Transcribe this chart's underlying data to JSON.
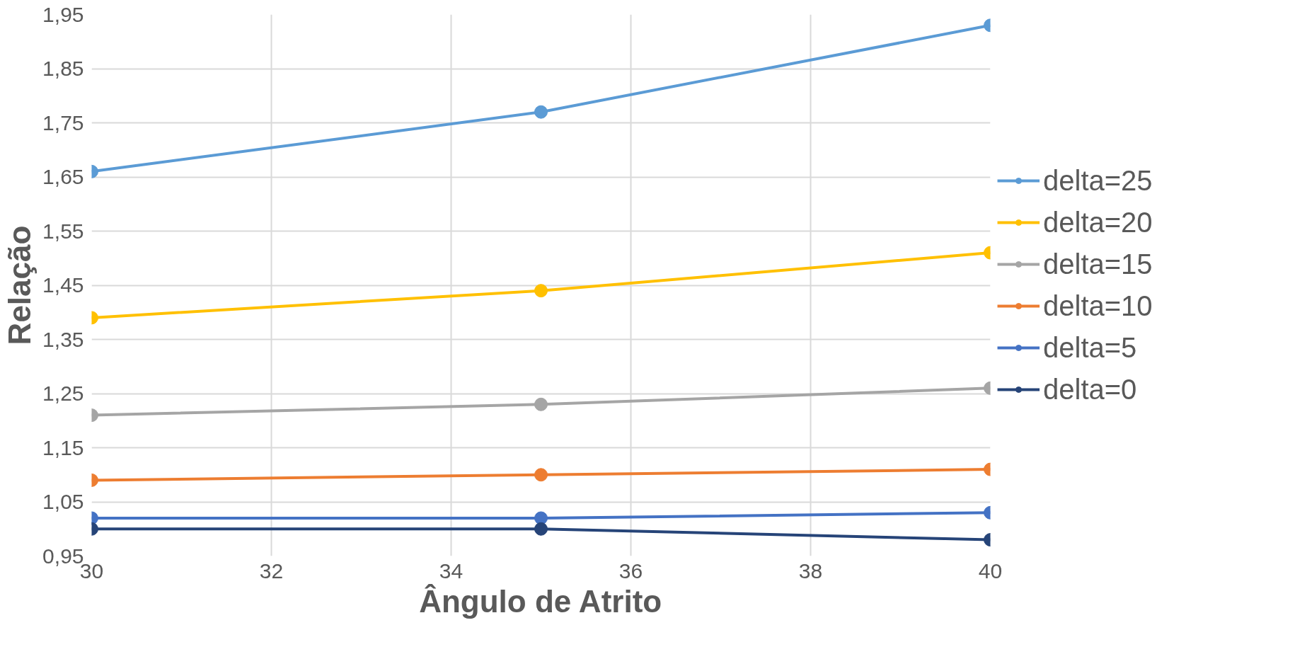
{
  "chart_data": {
    "type": "line",
    "xlabel": "Ângulo de Atrito",
    "ylabel": "Relação",
    "x": [
      30,
      35,
      40
    ],
    "series": [
      {
        "name": "delta=25",
        "color": "#5b9bd5",
        "values": [
          1.66,
          1.77,
          1.93
        ]
      },
      {
        "name": "delta=20",
        "color": "#ffc000",
        "values": [
          1.39,
          1.44,
          1.51
        ]
      },
      {
        "name": "delta=15",
        "color": "#a5a5a5",
        "values": [
          1.21,
          1.23,
          1.26
        ]
      },
      {
        "name": "delta=10",
        "color": "#ed7d31",
        "values": [
          1.09,
          1.1,
          1.11
        ]
      },
      {
        "name": "delta=5",
        "color": "#4472c4",
        "values": [
          1.02,
          1.02,
          1.03
        ]
      },
      {
        "name": "delta=0",
        "color": "#264478",
        "values": [
          1.0,
          1.0,
          0.98
        ]
      }
    ],
    "xlim": [
      30,
      40
    ],
    "xticks": [
      30,
      32,
      34,
      36,
      38,
      40
    ],
    "ylim": [
      0.95,
      1.95
    ],
    "yticks": [
      {
        "value": 0.95,
        "label": "0,95"
      },
      {
        "value": 1.05,
        "label": "1,05"
      },
      {
        "value": 1.15,
        "label": "1,15"
      },
      {
        "value": 1.25,
        "label": "1,25"
      },
      {
        "value": 1.35,
        "label": "1,35"
      },
      {
        "value": 1.45,
        "label": "1,45"
      },
      {
        "value": 1.55,
        "label": "1,55"
      },
      {
        "value": 1.65,
        "label": "1,65"
      },
      {
        "value": 1.75,
        "label": "1,75"
      },
      {
        "value": 1.85,
        "label": "1,85"
      },
      {
        "value": 1.95,
        "label": "1,95"
      }
    ],
    "grid": true,
    "legend": "right",
    "marker": "circle",
    "line_style": "solid"
  }
}
